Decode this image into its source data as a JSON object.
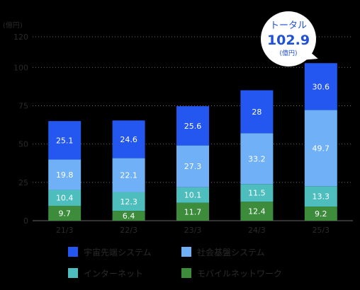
{
  "chart_data": {
    "type": "bar",
    "stacked": true,
    "unit_label": "(億円)",
    "categories": [
      "21/3",
      "22/3",
      "23/3",
      "24/3",
      "25/3"
    ],
    "ylim": [
      0,
      120
    ],
    "yticks": [
      "0",
      "25",
      "50",
      "75",
      "100",
      "120"
    ],
    "grid": true,
    "legend_position": "bottom",
    "series": [
      {
        "name": "モバイルネットワーク",
        "color": "#3c8c3c",
        "values": [
          9.7,
          6.4,
          11.7,
          12.4,
          9.2
        ]
      },
      {
        "name": "インターネット",
        "color": "#4dbdbd",
        "values": [
          10.4,
          12.3,
          10.1,
          11.5,
          13.3
        ]
      },
      {
        "name": "社会基盤システム",
        "color": "#6fb0f6",
        "values": [
          19.8,
          22.1,
          27.3,
          33.2,
          49.7
        ]
      },
      {
        "name": "宇宙先端システム",
        "color": "#2456f0",
        "values": [
          25.1,
          24.6,
          25.6,
          28,
          30.6
        ]
      }
    ],
    "value_labels": [
      [
        "9.7",
        "6.4",
        "11.7",
        "12.4",
        "9.2"
      ],
      [
        "10.4",
        "12.3",
        "10.1",
        "11.5",
        "13.3"
      ],
      [
        "19.8",
        "22.1",
        "27.3",
        "33.2",
        "49.7"
      ],
      [
        "25.1",
        "24.6",
        "25.6",
        "28",
        "30.6"
      ]
    ],
    "annotation": {
      "title": "トータル",
      "value": "102.9",
      "unit": "(億円)",
      "category": "25/3",
      "total": 102.9
    }
  },
  "legend": {
    "items": [
      {
        "label": "宇宙先端システム",
        "color": "#2456f0"
      },
      {
        "label": "社会基盤システム",
        "color": "#6fb0f6"
      },
      {
        "label": "インターネット",
        "color": "#4dbdbd"
      },
      {
        "label": "モバイルネットワーク",
        "color": "#3c8c3c"
      }
    ]
  },
  "colors": {
    "axis_text": "#2a2a2a",
    "bar_label": "#ffffff",
    "callout_text": "#1e50d8",
    "callout_bg": "#ffffff"
  }
}
